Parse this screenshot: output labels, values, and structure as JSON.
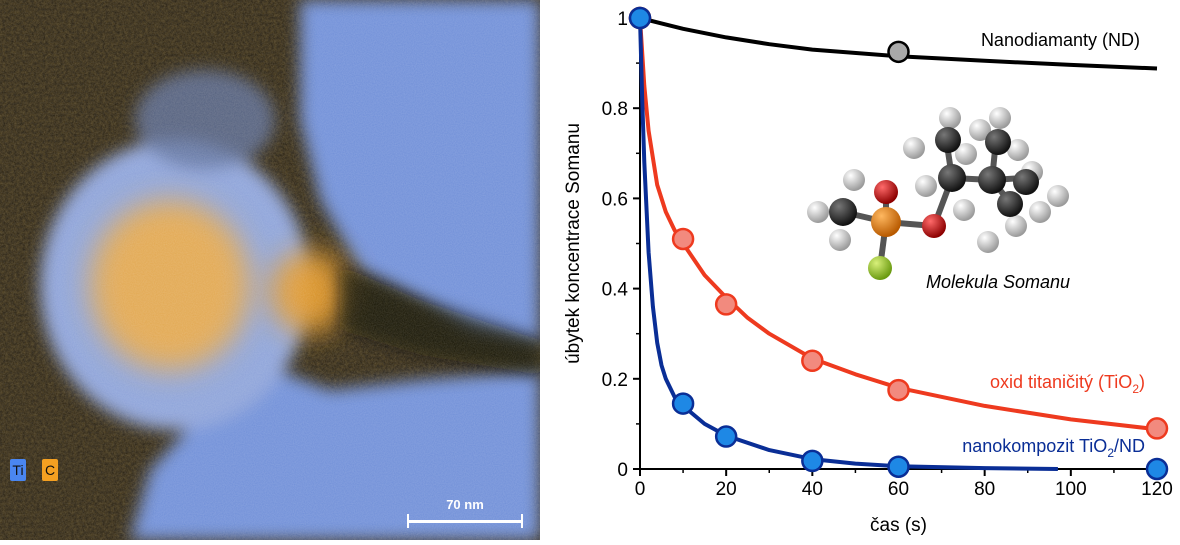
{
  "micrograph": {
    "legend": [
      {
        "label": "Ti",
        "color": "#4a86f0"
      },
      {
        "label": "C",
        "color": "#f5a021"
      }
    ],
    "scale_bar_label": "70 nm",
    "colors": {
      "titanium": "#6f93e6",
      "carbon": "#f3a62b",
      "background": "#141008"
    }
  },
  "chart_data": {
    "type": "scatter",
    "xlabel": "čas (s)",
    "ylabel": "úbytek koncentrace Somanu",
    "xlim": [
      0,
      120
    ],
    "ylim": [
      0,
      1
    ],
    "xticks": [
      "0",
      "20",
      "40",
      "60",
      "80",
      "100",
      "120"
    ],
    "yticks": [
      "0",
      "0.2",
      "0.4",
      "0.6",
      "0.8",
      "1"
    ],
    "series": [
      {
        "name": "Nanodiamanty (ND)",
        "color": "#000000",
        "marker_fill": "#a9a9a9",
        "points": [
          {
            "x": 0,
            "y": 1.0
          },
          {
            "x": 60,
            "y": 0.925
          }
        ],
        "fit": [
          [
            0,
            1.0
          ],
          [
            5,
            0.988
          ],
          [
            10,
            0.976
          ],
          [
            20,
            0.957
          ],
          [
            30,
            0.942
          ],
          [
            40,
            0.93
          ],
          [
            60,
            0.915
          ],
          [
            80,
            0.905
          ],
          [
            100,
            0.896
          ],
          [
            120,
            0.888
          ]
        ]
      },
      {
        "name": "oxid titaničitý (TiO",
        "name_sub": "2",
        "name_suffix": ")",
        "color": "#ee3a1f",
        "marker_fill": "#f28a7e",
        "points": [
          {
            "x": 0,
            "y": 1.0
          },
          {
            "x": 10,
            "y": 0.51
          },
          {
            "x": 20,
            "y": 0.365
          },
          {
            "x": 40,
            "y": 0.24
          },
          {
            "x": 60,
            "y": 0.175
          },
          {
            "x": 120,
            "y": 0.09
          }
        ],
        "fit": [
          [
            0,
            1.0
          ],
          [
            1,
            0.85
          ],
          [
            2,
            0.75
          ],
          [
            4,
            0.63
          ],
          [
            6,
            0.57
          ],
          [
            8,
            0.53
          ],
          [
            10,
            0.5
          ],
          [
            15,
            0.43
          ],
          [
            20,
            0.38
          ],
          [
            25,
            0.335
          ],
          [
            30,
            0.3
          ],
          [
            40,
            0.245
          ],
          [
            50,
            0.21
          ],
          [
            60,
            0.18
          ],
          [
            80,
            0.14
          ],
          [
            100,
            0.11
          ],
          [
            120,
            0.088
          ]
        ]
      },
      {
        "name": "nanokompozit TiO",
        "name_sub": "2",
        "name_suffix": "/ND",
        "color": "#0a2e96",
        "marker_fill": "#1e88e5",
        "points": [
          {
            "x": 0,
            "y": 1.0
          },
          {
            "x": 10,
            "y": 0.145
          },
          {
            "x": 20,
            "y": 0.072
          },
          {
            "x": 40,
            "y": 0.018
          },
          {
            "x": 60,
            "y": 0.005
          },
          {
            "x": 120,
            "y": 0.0
          }
        ],
        "fit": [
          [
            0,
            1.0
          ],
          [
            0.5,
            0.82
          ],
          [
            1,
            0.68
          ],
          [
            2,
            0.48
          ],
          [
            3,
            0.36
          ],
          [
            4,
            0.28
          ],
          [
            5,
            0.23
          ],
          [
            6,
            0.2
          ],
          [
            8,
            0.16
          ],
          [
            10,
            0.14
          ],
          [
            15,
            0.1
          ],
          [
            20,
            0.074
          ],
          [
            30,
            0.042
          ],
          [
            40,
            0.022
          ],
          [
            50,
            0.012
          ],
          [
            60,
            0.006
          ],
          [
            80,
            0.002
          ],
          [
            97,
            0.0
          ]
        ]
      }
    ],
    "annotations": {
      "molecule_label": "Molekula Somanu"
    }
  }
}
